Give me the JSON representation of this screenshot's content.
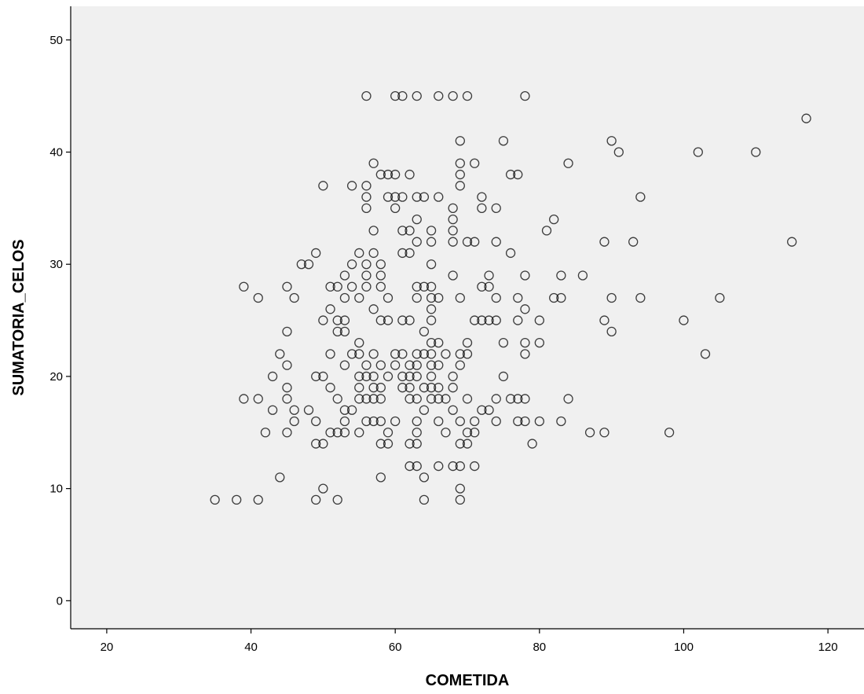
{
  "chart_data": {
    "type": "scatter",
    "xlabel": "COMETIDA",
    "ylabel": "SUMATORIA_CELOS",
    "xlim": [
      15,
      125
    ],
    "ylim": [
      -2.5,
      53
    ],
    "xticks": [
      20,
      40,
      60,
      80,
      100,
      120
    ],
    "yticks": [
      0,
      10,
      20,
      30,
      40,
      50
    ],
    "grid": false,
    "legend": "none",
    "colors": {
      "plot_background": "#f0f0f0",
      "marker_stroke": "#000000",
      "axis": "#000000"
    },
    "marker": "open-circle",
    "points": [
      [
        35,
        9
      ],
      [
        38,
        9
      ],
      [
        41,
        9
      ],
      [
        49,
        9
      ],
      [
        52,
        9
      ],
      [
        64,
        9
      ],
      [
        69,
        9
      ],
      [
        50,
        10
      ],
      [
        69,
        10
      ],
      [
        44,
        11
      ],
      [
        58,
        11
      ],
      [
        64,
        11
      ],
      [
        62,
        12
      ],
      [
        63,
        12
      ],
      [
        66,
        12
      ],
      [
        68,
        12
      ],
      [
        69,
        12
      ],
      [
        71,
        12
      ],
      [
        49,
        14
      ],
      [
        50,
        14
      ],
      [
        58,
        14
      ],
      [
        59,
        14
      ],
      [
        62,
        14
      ],
      [
        63,
        14
      ],
      [
        69,
        14
      ],
      [
        70,
        14
      ],
      [
        79,
        14
      ],
      [
        42,
        15
      ],
      [
        45,
        15
      ],
      [
        51,
        15
      ],
      [
        52,
        15
      ],
      [
        53,
        15
      ],
      [
        55,
        15
      ],
      [
        59,
        15
      ],
      [
        63,
        15
      ],
      [
        67,
        15
      ],
      [
        70,
        15
      ],
      [
        71,
        15
      ],
      [
        87,
        15
      ],
      [
        89,
        15
      ],
      [
        98,
        15
      ],
      [
        46,
        16
      ],
      [
        49,
        16
      ],
      [
        53,
        16
      ],
      [
        56,
        16
      ],
      [
        57,
        16
      ],
      [
        58,
        16
      ],
      [
        60,
        16
      ],
      [
        63,
        16
      ],
      [
        66,
        16
      ],
      [
        69,
        16
      ],
      [
        71,
        16
      ],
      [
        74,
        16
      ],
      [
        77,
        16
      ],
      [
        78,
        16
      ],
      [
        80,
        16
      ],
      [
        83,
        16
      ],
      [
        43,
        17
      ],
      [
        46,
        17
      ],
      [
        48,
        17
      ],
      [
        53,
        17
      ],
      [
        54,
        17
      ],
      [
        64,
        17
      ],
      [
        68,
        17
      ],
      [
        72,
        17
      ],
      [
        73,
        17
      ],
      [
        39,
        18
      ],
      [
        41,
        18
      ],
      [
        45,
        18
      ],
      [
        52,
        18
      ],
      [
        55,
        18
      ],
      [
        56,
        18
      ],
      [
        57,
        18
      ],
      [
        58,
        18
      ],
      [
        62,
        18
      ],
      [
        63,
        18
      ],
      [
        65,
        18
      ],
      [
        66,
        18
      ],
      [
        67,
        18
      ],
      [
        70,
        18
      ],
      [
        74,
        18
      ],
      [
        76,
        18
      ],
      [
        77,
        18
      ],
      [
        78,
        18
      ],
      [
        84,
        18
      ],
      [
        45,
        19
      ],
      [
        51,
        19
      ],
      [
        55,
        19
      ],
      [
        57,
        19
      ],
      [
        58,
        19
      ],
      [
        61,
        19
      ],
      [
        62,
        19
      ],
      [
        64,
        19
      ],
      [
        65,
        19
      ],
      [
        66,
        19
      ],
      [
        68,
        19
      ],
      [
        43,
        20
      ],
      [
        49,
        20
      ],
      [
        50,
        20
      ],
      [
        55,
        20
      ],
      [
        56,
        20
      ],
      [
        57,
        20
      ],
      [
        59,
        20
      ],
      [
        61,
        20
      ],
      [
        62,
        20
      ],
      [
        63,
        20
      ],
      [
        65,
        20
      ],
      [
        68,
        20
      ],
      [
        75,
        20
      ],
      [
        45,
        21
      ],
      [
        53,
        21
      ],
      [
        56,
        21
      ],
      [
        58,
        21
      ],
      [
        60,
        21
      ],
      [
        62,
        21
      ],
      [
        63,
        21
      ],
      [
        65,
        21
      ],
      [
        66,
        21
      ],
      [
        69,
        21
      ],
      [
        44,
        22
      ],
      [
        51,
        22
      ],
      [
        54,
        22
      ],
      [
        55,
        22
      ],
      [
        57,
        22
      ],
      [
        60,
        22
      ],
      [
        61,
        22
      ],
      [
        63,
        22
      ],
      [
        64,
        22
      ],
      [
        65,
        22
      ],
      [
        67,
        22
      ],
      [
        69,
        22
      ],
      [
        70,
        22
      ],
      [
        78,
        22
      ],
      [
        103,
        22
      ],
      [
        55,
        23
      ],
      [
        65,
        23
      ],
      [
        66,
        23
      ],
      [
        70,
        23
      ],
      [
        75,
        23
      ],
      [
        78,
        23
      ],
      [
        80,
        23
      ],
      [
        45,
        24
      ],
      [
        52,
        24
      ],
      [
        53,
        24
      ],
      [
        64,
        24
      ],
      [
        90,
        24
      ],
      [
        50,
        25
      ],
      [
        52,
        25
      ],
      [
        53,
        25
      ],
      [
        58,
        25
      ],
      [
        59,
        25
      ],
      [
        61,
        25
      ],
      [
        62,
        25
      ],
      [
        65,
        25
      ],
      [
        71,
        25
      ],
      [
        72,
        25
      ],
      [
        73,
        25
      ],
      [
        74,
        25
      ],
      [
        77,
        25
      ],
      [
        80,
        25
      ],
      [
        89,
        25
      ],
      [
        100,
        25
      ],
      [
        51,
        26
      ],
      [
        57,
        26
      ],
      [
        65,
        26
      ],
      [
        78,
        26
      ],
      [
        41,
        27
      ],
      [
        46,
        27
      ],
      [
        53,
        27
      ],
      [
        55,
        27
      ],
      [
        59,
        27
      ],
      [
        63,
        27
      ],
      [
        65,
        27
      ],
      [
        66,
        27
      ],
      [
        69,
        27
      ],
      [
        74,
        27
      ],
      [
        77,
        27
      ],
      [
        82,
        27
      ],
      [
        83,
        27
      ],
      [
        90,
        27
      ],
      [
        94,
        27
      ],
      [
        105,
        27
      ],
      [
        39,
        28
      ],
      [
        45,
        28
      ],
      [
        51,
        28
      ],
      [
        52,
        28
      ],
      [
        54,
        28
      ],
      [
        56,
        28
      ],
      [
        58,
        28
      ],
      [
        63,
        28
      ],
      [
        64,
        28
      ],
      [
        65,
        28
      ],
      [
        72,
        28
      ],
      [
        73,
        28
      ],
      [
        53,
        29
      ],
      [
        56,
        29
      ],
      [
        58,
        29
      ],
      [
        68,
        29
      ],
      [
        73,
        29
      ],
      [
        78,
        29
      ],
      [
        83,
        29
      ],
      [
        86,
        29
      ],
      [
        47,
        30
      ],
      [
        48,
        30
      ],
      [
        54,
        30
      ],
      [
        56,
        30
      ],
      [
        58,
        30
      ],
      [
        65,
        30
      ],
      [
        49,
        31
      ],
      [
        55,
        31
      ],
      [
        57,
        31
      ],
      [
        61,
        31
      ],
      [
        62,
        31
      ],
      [
        76,
        31
      ],
      [
        63,
        32
      ],
      [
        65,
        32
      ],
      [
        68,
        32
      ],
      [
        70,
        32
      ],
      [
        71,
        32
      ],
      [
        74,
        32
      ],
      [
        89,
        32
      ],
      [
        93,
        32
      ],
      [
        115,
        32
      ],
      [
        57,
        33
      ],
      [
        61,
        33
      ],
      [
        62,
        33
      ],
      [
        65,
        33
      ],
      [
        68,
        33
      ],
      [
        81,
        33
      ],
      [
        63,
        34
      ],
      [
        68,
        34
      ],
      [
        82,
        34
      ],
      [
        56,
        35
      ],
      [
        60,
        35
      ],
      [
        68,
        35
      ],
      [
        72,
        35
      ],
      [
        74,
        35
      ],
      [
        56,
        36
      ],
      [
        59,
        36
      ],
      [
        60,
        36
      ],
      [
        61,
        36
      ],
      [
        63,
        36
      ],
      [
        64,
        36
      ],
      [
        66,
        36
      ],
      [
        72,
        36
      ],
      [
        94,
        36
      ],
      [
        50,
        37
      ],
      [
        54,
        37
      ],
      [
        56,
        37
      ],
      [
        69,
        37
      ],
      [
        58,
        38
      ],
      [
        59,
        38
      ],
      [
        60,
        38
      ],
      [
        62,
        38
      ],
      [
        69,
        38
      ],
      [
        76,
        38
      ],
      [
        77,
        38
      ],
      [
        57,
        39
      ],
      [
        69,
        39
      ],
      [
        71,
        39
      ],
      [
        84,
        39
      ],
      [
        69,
        41
      ],
      [
        75,
        41
      ],
      [
        90,
        41
      ],
      [
        91,
        40
      ],
      [
        102,
        40
      ],
      [
        110,
        40
      ],
      [
        117,
        43
      ],
      [
        56,
        45
      ],
      [
        60,
        45
      ],
      [
        61,
        45
      ],
      [
        63,
        45
      ],
      [
        66,
        45
      ],
      [
        68,
        45
      ],
      [
        70,
        45
      ],
      [
        78,
        45
      ]
    ]
  }
}
